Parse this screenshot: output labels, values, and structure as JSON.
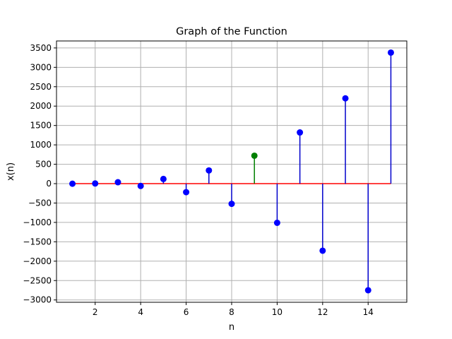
{
  "chart_data": {
    "type": "stem",
    "title": "Graph of the Function",
    "xlabel": "n",
    "ylabel": "x(n)",
    "xlim": [
      0.3,
      15.7
    ],
    "ylim": [
      -3060,
      3680
    ],
    "xticks": [
      2,
      4,
      6,
      8,
      10,
      12,
      14
    ],
    "yticks": [
      -3000,
      -2500,
      -2000,
      -1500,
      -1000,
      -500,
      0,
      500,
      1000,
      1500,
      2000,
      2500,
      3000,
      3500
    ],
    "grid": true,
    "baseline": {
      "value": 0,
      "color": "#ff0000",
      "from_x": 1,
      "to_x": 15
    },
    "x": [
      1,
      2,
      3,
      4,
      5,
      6,
      7,
      8,
      9,
      10,
      11,
      12,
      13,
      14,
      15
    ],
    "y": [
      -2,
      4,
      36,
      -60,
      120,
      -220,
      340,
      -520,
      720,
      -1010,
      1320,
      -1730,
      2200,
      -2750,
      3380
    ],
    "colors": {
      "default_stem": "#0000cc",
      "default_marker": "#0000ff",
      "highlight_stem": "#008000",
      "highlight_marker": "#008000",
      "grid": "#b0b0b0"
    },
    "highlight_index": 8
  }
}
